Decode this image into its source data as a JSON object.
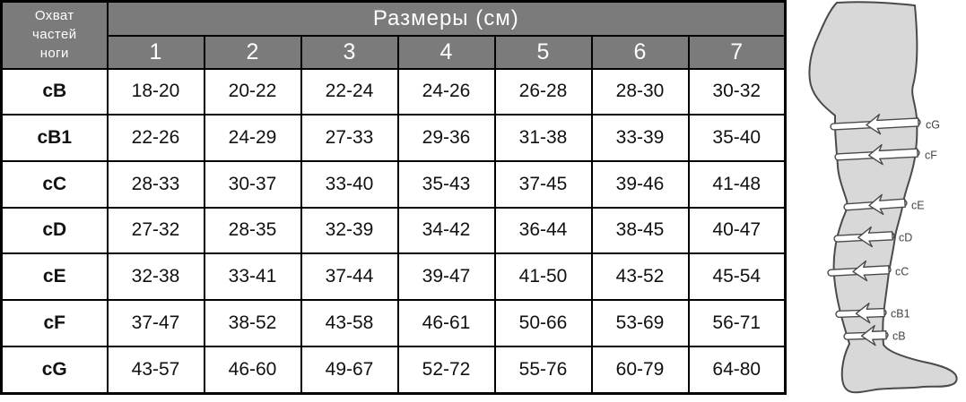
{
  "chart_data": {
    "type": "table",
    "title": "Размеры (см)",
    "corner_label": "Охват частей ноги",
    "columns": [
      "1",
      "2",
      "3",
      "4",
      "5",
      "6",
      "7"
    ],
    "rows": [
      {
        "label": "cB",
        "values": [
          "18-20",
          "20-22",
          "22-24",
          "24-26",
          "26-28",
          "28-30",
          "30-32"
        ]
      },
      {
        "label": "cB1",
        "values": [
          "22-26",
          "24-29",
          "27-33",
          "29-36",
          "31-38",
          "33-39",
          "35-40"
        ]
      },
      {
        "label": "cC",
        "values": [
          "28-33",
          "30-37",
          "33-40",
          "35-43",
          "37-45",
          "39-46",
          "41-48"
        ]
      },
      {
        "label": "cD",
        "values": [
          "27-32",
          "28-35",
          "32-39",
          "34-42",
          "36-44",
          "38-45",
          "40-47"
        ]
      },
      {
        "label": "cE",
        "values": [
          "32-38",
          "33-41",
          "37-44",
          "39-47",
          "41-50",
          "43-52",
          "45-54"
        ]
      },
      {
        "label": "cF",
        "values": [
          "37-47",
          "38-52",
          "43-58",
          "46-61",
          "50-66",
          "53-69",
          "56-71"
        ]
      },
      {
        "label": "cG",
        "values": [
          "43-57",
          "46-60",
          "49-67",
          "52-72",
          "55-76",
          "60-79",
          "64-80"
        ]
      }
    ]
  },
  "diagram": {
    "bands": [
      "cG",
      "cF",
      "cE",
      "cD",
      "cC",
      "cB1",
      "cB"
    ]
  },
  "colors": {
    "header_bg": "#7b7b7b",
    "header_text": "#ffffff",
    "table_border": "#000000",
    "cell_text": "#111111",
    "leg_fill": "#d8d8d8",
    "leg_outline": "#4a4a4a",
    "band_label_text": "#444444"
  }
}
